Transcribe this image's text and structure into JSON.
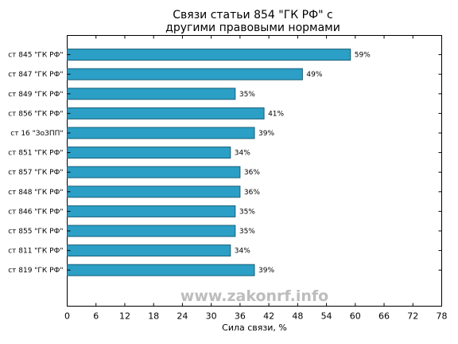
{
  "chart_data": {
    "type": "bar",
    "orientation": "horizontal",
    "title_line1": "Связи статьи 854 \"ГК РФ\" с",
    "title_line2": "другими правовыми нормами",
    "xlabel": "Сила связи, %",
    "xlim": [
      0,
      78
    ],
    "xticks": [
      0,
      6,
      12,
      18,
      24,
      30,
      36,
      42,
      48,
      54,
      60,
      66,
      72,
      78
    ],
    "categories": [
      "ст 845 \"ГК РФ\"",
      "ст 847 \"ГК РФ\"",
      "ст 849 \"ГК РФ\"",
      "ст 856 \"ГК РФ\"",
      "ст 16 \"ЗоЗПП\"",
      "ст 851 \"ГК РФ\"",
      "ст 857 \"ГК РФ\"",
      "ст 848 \"ГК РФ\"",
      "ст 846 \"ГК РФ\"",
      "ст 855 \"ГК РФ\"",
      "ст 811 \"ГК РФ\"",
      "ст 819 \"ГК РФ\""
    ],
    "values": [
      59,
      49,
      35,
      41,
      39,
      34,
      36,
      36,
      35,
      35,
      34,
      39
    ],
    "value_labels": [
      "59%",
      "49%",
      "35%",
      "41%",
      "39%",
      "34%",
      "36%",
      "36%",
      "35%",
      "35%",
      "34%",
      "39%"
    ],
    "bar_color": "#2b9fc6",
    "grid": false
  },
  "watermark": "www.zakonrf.info"
}
